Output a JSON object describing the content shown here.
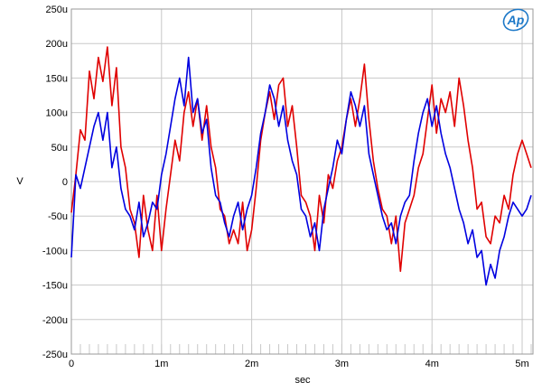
{
  "chart_data": {
    "type": "line",
    "title": "",
    "xlabel": "sec",
    "ylabel": "V",
    "xlim": [
      0,
      0.00512
    ],
    "ylim": [
      -0.00025,
      0.00025
    ],
    "x_ticks": [
      {
        "value": 0,
        "label": "0"
      },
      {
        "value": 0.001,
        "label": "1m"
      },
      {
        "value": 0.002,
        "label": "2m"
      },
      {
        "value": 0.003,
        "label": "3m"
      },
      {
        "value": 0.004,
        "label": "4m"
      },
      {
        "value": 0.005,
        "label": "5m"
      }
    ],
    "y_ticks": [
      {
        "value": 0.00025,
        "label": "250u"
      },
      {
        "value": 0.0002,
        "label": "200u"
      },
      {
        "value": 0.00015,
        "label": "150u"
      },
      {
        "value": 0.0001,
        "label": "100u"
      },
      {
        "value": 5e-05,
        "label": "50u"
      },
      {
        "value": 0,
        "label": "0"
      },
      {
        "value": -5e-05,
        "label": "-50u"
      },
      {
        "value": -0.0001,
        "label": "-100u"
      },
      {
        "value": -0.00015,
        "label": "-150u"
      },
      {
        "value": -0.0002,
        "label": "-200u"
      },
      {
        "value": -0.00025,
        "label": "-250u"
      }
    ],
    "grid": true,
    "logo_text": "Ap",
    "colors": {
      "red": "#e00000",
      "blue": "#0000e0",
      "grid": "#c8c8c8",
      "logo": "#1c78c8"
    },
    "series": [
      {
        "color": "#e00000",
        "x": [
          0,
          5e-05,
          0.0001,
          0.00015,
          0.0002,
          0.00025,
          0.0003,
          0.00035,
          0.0004,
          0.00045,
          0.0005,
          0.00055,
          0.0006,
          0.00065,
          0.0007,
          0.00075,
          0.0008,
          0.00085,
          0.0009,
          0.00095,
          0.001,
          0.00105,
          0.0011,
          0.00115,
          0.0012,
          0.00125,
          0.0013,
          0.00135,
          0.0014,
          0.00145,
          0.0015,
          0.00155,
          0.0016,
          0.00165,
          0.0017,
          0.00175,
          0.0018,
          0.00185,
          0.0019,
          0.00195,
          0.002,
          0.00205,
          0.0021,
          0.00215,
          0.0022,
          0.00225,
          0.0023,
          0.00235,
          0.0024,
          0.00245,
          0.0025,
          0.00255,
          0.0026,
          0.00265,
          0.0027,
          0.00275,
          0.0028,
          0.00285,
          0.0029,
          0.00295,
          0.003,
          0.00305,
          0.0031,
          0.00315,
          0.0032,
          0.00325,
          0.0033,
          0.00335,
          0.0034,
          0.00345,
          0.0035,
          0.00355,
          0.0036,
          0.00365,
          0.0037,
          0.00375,
          0.0038,
          0.00385,
          0.0039,
          0.00395,
          0.004,
          0.00405,
          0.0041,
          0.00415,
          0.0042,
          0.00425,
          0.0043,
          0.00435,
          0.0044,
          0.00445,
          0.0045,
          0.00455,
          0.0046,
          0.00465,
          0.0047,
          0.00475,
          0.0048,
          0.00485,
          0.0049,
          0.00495,
          0.005,
          0.00505,
          0.0051
        ],
        "y": [
          -4.5e-05,
          1e-05,
          7.5e-05,
          6e-05,
          0.00016,
          0.00012,
          0.00018,
          0.000145,
          0.000195,
          0.00011,
          0.000165,
          5e-05,
          2e-05,
          -4e-05,
          -6e-05,
          -0.00011,
          -2e-05,
          -7e-05,
          -0.0001,
          -2e-05,
          -0.0001,
          -4e-05,
          1e-05,
          6e-05,
          3e-05,
          0.0001,
          0.00013,
          8e-05,
          0.00012,
          6e-05,
          0.00011,
          5e-05,
          2e-05,
          -4e-05,
          -5e-05,
          -9e-05,
          -7e-05,
          -9e-05,
          -3e-05,
          -0.0001,
          -7e-05,
          -1e-05,
          6e-05,
          0.0001,
          0.00013,
          9e-05,
          0.00014,
          0.00015,
          8e-05,
          0.00011,
          5e-05,
          -2e-05,
          -3e-05,
          -5e-05,
          -0.0001,
          -2e-05,
          -6e-05,
          1e-05,
          -1e-05,
          3e-05,
          5e-05,
          9e-05,
          0.00012,
          8e-05,
          0.00012,
          0.00017,
          9e-05,
          3e-05,
          -1e-05,
          -4e-05,
          -5e-05,
          -9e-05,
          -5e-05,
          -0.00013,
          -6e-05,
          -4e-05,
          -2e-05,
          2e-05,
          4e-05,
          9e-05,
          0.00014,
          7e-05,
          0.00012,
          0.0001,
          0.00013,
          8e-05,
          0.00015,
          0.00011,
          6e-05,
          2e-05,
          -4e-05,
          -3e-05,
          -8e-05,
          -9e-05,
          -5e-05,
          -6e-05,
          -2e-05,
          -4e-05,
          1e-05,
          4e-05,
          6e-05,
          4e-05,
          2e-05
        ]
      },
      {
        "color": "#0000e0",
        "x": [
          0,
          5e-05,
          0.0001,
          0.00015,
          0.0002,
          0.00025,
          0.0003,
          0.00035,
          0.0004,
          0.00045,
          0.0005,
          0.00055,
          0.0006,
          0.00065,
          0.0007,
          0.00075,
          0.0008,
          0.00085,
          0.0009,
          0.00095,
          0.001,
          0.00105,
          0.0011,
          0.00115,
          0.0012,
          0.00125,
          0.0013,
          0.00135,
          0.0014,
          0.00145,
          0.0015,
          0.00155,
          0.0016,
          0.00165,
          0.0017,
          0.00175,
          0.0018,
          0.00185,
          0.0019,
          0.00195,
          0.002,
          0.00205,
          0.0021,
          0.00215,
          0.0022,
          0.00225,
          0.0023,
          0.00235,
          0.0024,
          0.00245,
          0.0025,
          0.00255,
          0.0026,
          0.00265,
          0.0027,
          0.00275,
          0.0028,
          0.00285,
          0.0029,
          0.00295,
          0.003,
          0.00305,
          0.0031,
          0.00315,
          0.0032,
          0.00325,
          0.0033,
          0.00335,
          0.0034,
          0.00345,
          0.0035,
          0.00355,
          0.0036,
          0.00365,
          0.0037,
          0.00375,
          0.0038,
          0.00385,
          0.0039,
          0.00395,
          0.004,
          0.00405,
          0.0041,
          0.00415,
          0.0042,
          0.00425,
          0.0043,
          0.00435,
          0.0044,
          0.00445,
          0.0045,
          0.00455,
          0.0046,
          0.00465,
          0.0047,
          0.00475,
          0.0048,
          0.00485,
          0.0049,
          0.00495,
          0.005,
          0.00505,
          0.0051
        ],
        "y": [
          -0.00011,
          1e-05,
          -1e-05,
          2e-05,
          5e-05,
          8e-05,
          0.0001,
          6e-05,
          0.0001,
          2e-05,
          5e-05,
          -1e-05,
          -4e-05,
          -5e-05,
          -7e-05,
          -3e-05,
          -8e-05,
          -6e-05,
          -3e-05,
          -4e-05,
          1e-05,
          4e-05,
          8e-05,
          0.00012,
          0.00015,
          0.00011,
          0.00018,
          0.0001,
          0.00012,
          7e-05,
          9e-05,
          2e-05,
          -2e-05,
          -3e-05,
          -6e-05,
          -8e-05,
          -5e-05,
          -3e-05,
          -7e-05,
          -4e-05,
          -2e-05,
          2e-05,
          7e-05,
          0.0001,
          0.00014,
          0.00012,
          8e-05,
          0.00011,
          6e-05,
          3e-05,
          1e-05,
          -4e-05,
          -5e-05,
          -8e-05,
          -6e-05,
          -0.0001,
          -4e-05,
          -1e-05,
          2e-05,
          6e-05,
          4e-05,
          9e-05,
          0.00013,
          0.00011,
          8e-05,
          0.00011,
          4e-05,
          1e-05,
          -2e-05,
          -5e-05,
          -7e-05,
          -6e-05,
          -9e-05,
          -5e-05,
          -3e-05,
          -2e-05,
          3e-05,
          7e-05,
          0.0001,
          0.00012,
          8e-05,
          0.00011,
          7e-05,
          4e-05,
          2e-05,
          -1e-05,
          -4e-05,
          -6e-05,
          -9e-05,
          -7e-05,
          -0.00011,
          -0.0001,
          -0.00015,
          -0.00012,
          -0.00014,
          -0.0001,
          -8e-05,
          -5e-05,
          -3e-05,
          -4e-05,
          -5e-05,
          -4e-05,
          -2e-05
        ]
      }
    ]
  }
}
